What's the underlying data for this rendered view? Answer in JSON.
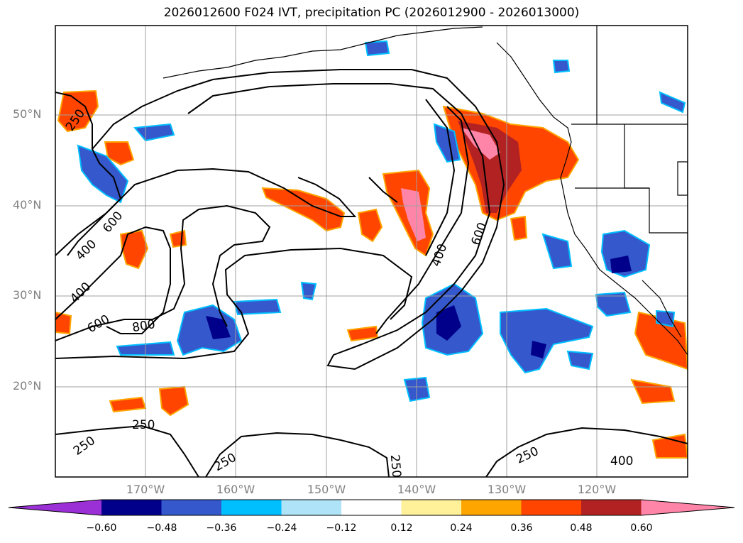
{
  "title": "2026012600 F024 IVT, precipitation PC (2026012900 - 2026013000)",
  "lat_labels": [
    "50°N",
    "40°N",
    "30°N",
    "20°N"
  ],
  "lon_labels": [
    "170°W",
    "160°W",
    "150°W",
    "140°W",
    "130°W",
    "120°W"
  ],
  "contour_labels": [
    "250",
    "600",
    "400",
    "400",
    "600",
    "800",
    "600",
    "400",
    "250",
    "250",
    "250",
    "250",
    "250",
    "400"
  ],
  "colorbar": {
    "ticks": [
      "−0.60",
      "−0.48",
      "−0.36",
      "−0.24",
      "−0.12",
      "0.12",
      "0.24",
      "0.36",
      "0.48",
      "0.60"
    ],
    "colors": [
      "#9b30d6",
      "#00008b",
      "#3558cc",
      "#00bfff",
      "#aee3f8",
      "#ffffff",
      "#fff09a",
      "#ffa500",
      "#ff4500",
      "#b22222",
      "#ff85a8"
    ]
  },
  "colors": {
    "frame": "#000000",
    "grid": "#a0a0a0",
    "contour": "#000000"
  }
}
